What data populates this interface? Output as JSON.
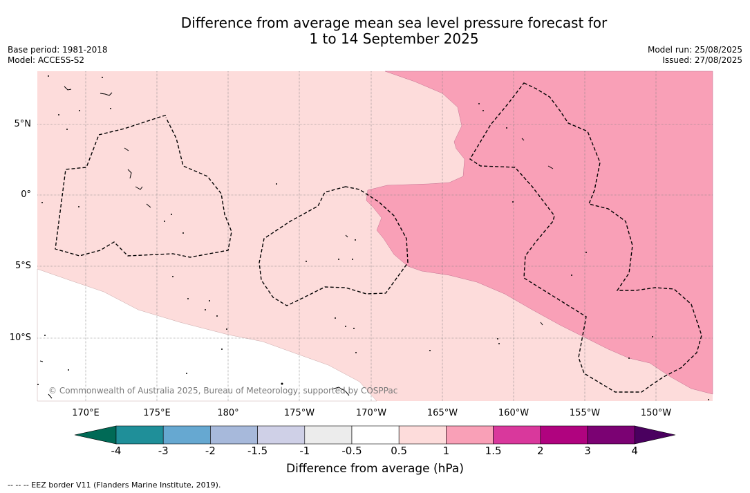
{
  "title_line1": "Difference from average mean sea level pressure forecast for",
  "title_line2": "1 to 14 September 2025",
  "meta": {
    "base_period": "Base period: 1981-2018",
    "model": "Model: ACCESS-S2",
    "model_run": "Model run: 25/08/2025",
    "issued": "Issued: 27/08/2025"
  },
  "map": {
    "lat_labels": [
      "5°N",
      "0°",
      "5°S",
      "10°S"
    ],
    "lon_labels": [
      "170°E",
      "175°E",
      "180°",
      "175°W",
      "170°W",
      "165°W",
      "160°W",
      "155°W",
      "150°W"
    ],
    "copyright": "© Commonwealth of Australia 2025, Bureau of Meteorology, supported by COSPPac",
    "colors": {
      "class_0_5_to_1": "#fddcdb",
      "class_1_to_1_5": "#f9a0b7",
      "below_0_5": "#ffffff"
    }
  },
  "colorbar": {
    "title": "Difference from average (hPa)",
    "ticks": [
      "-4",
      "-3",
      "-2",
      "-1.5",
      "-1",
      "-0.5",
      "0.5",
      "1",
      "1.5",
      "2",
      "3",
      "4"
    ],
    "colors": [
      "#006a56",
      "#1f8f99",
      "#66a8d1",
      "#a7b9db",
      "#cfd0e7",
      "#ececec",
      "#ffffff",
      "#fddcdb",
      "#f9a0b7",
      "#d9389c",
      "#b0037f",
      "#7b0273",
      "#4a005f"
    ]
  },
  "footnote": "-- -- -- EEZ border V11 (Flanders Marine Institute, 2019)."
}
